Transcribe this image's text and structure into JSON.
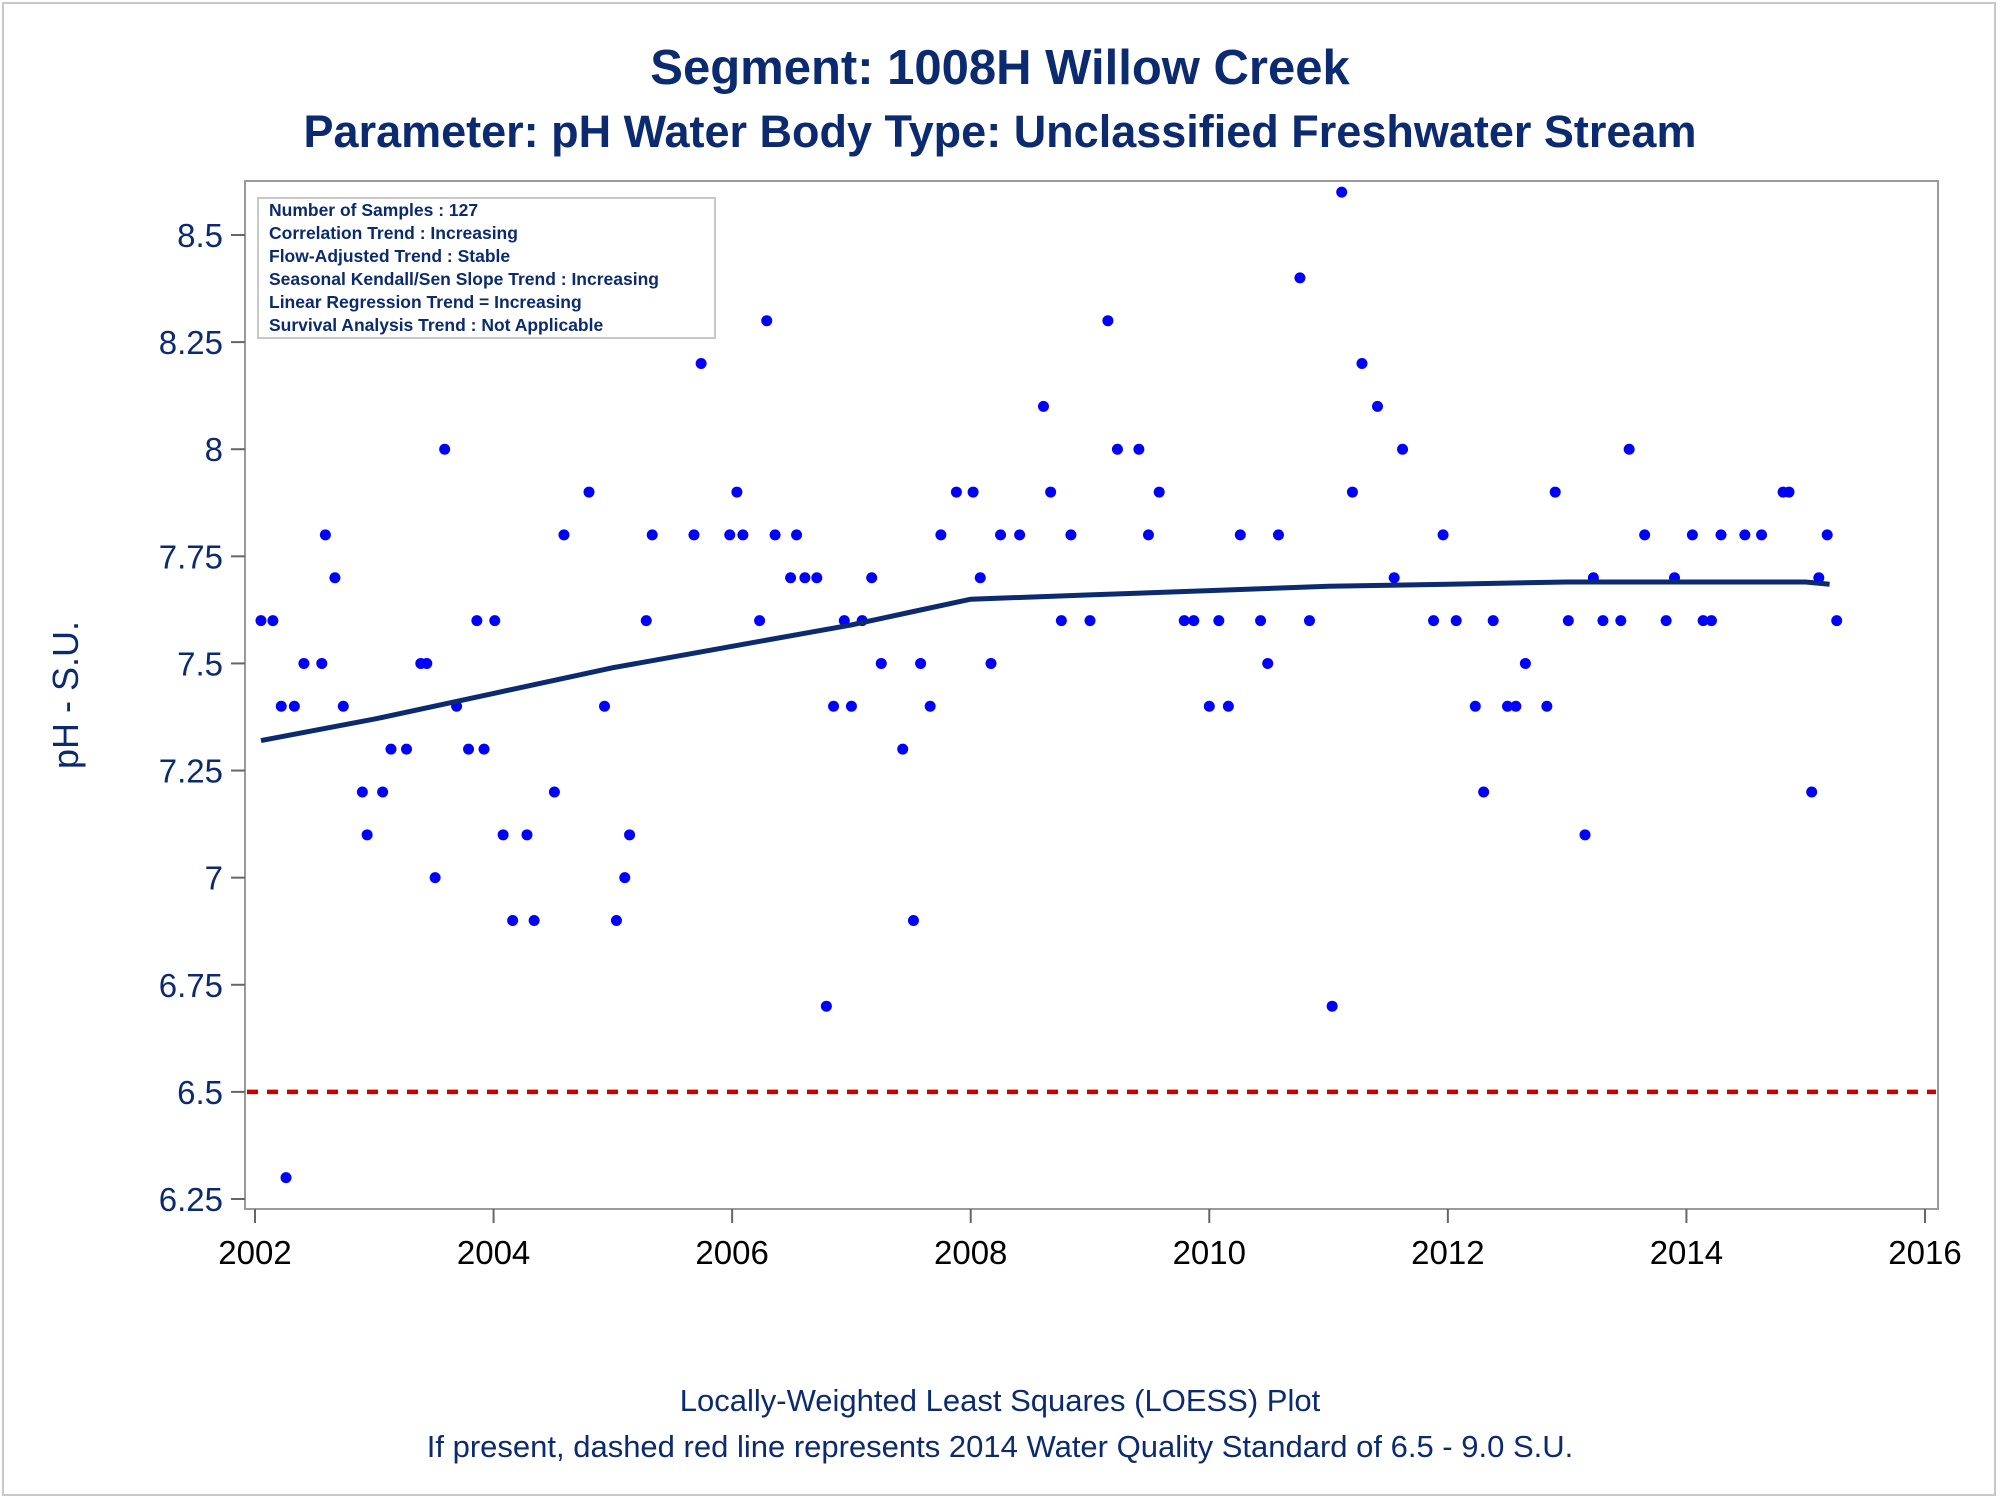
{
  "chart_data": {
    "type": "scatter",
    "title": "Segment: 1008H  Willow Creek",
    "subtitle": "Parameter: pH   Water Body Type: Unclassified Freshwater Stream",
    "xlabel": "",
    "ylabel": "pH - S.U.",
    "xlim": [
      2002,
      2016
    ],
    "ylim": [
      6.23,
      8.63
    ],
    "x_ticks": [
      2002,
      2004,
      2006,
      2008,
      2010,
      2012,
      2014,
      2016
    ],
    "y_ticks": [
      6.25,
      6.5,
      6.75,
      7,
      7.25,
      7.5,
      7.75,
      8,
      8.25,
      8.5
    ],
    "x_tick_labels": [
      "2002",
      "2004",
      "2006",
      "2008",
      "2010",
      "2012",
      "2014",
      "2016"
    ],
    "y_tick_labels": [
      "6.25",
      "6.5",
      "6.75",
      "7",
      "7.25",
      "7.5",
      "7.75",
      "8",
      "8.25",
      "8.5"
    ],
    "grid": false,
    "colors": {
      "points": "#0000ff",
      "trend": "#0b2a6f",
      "standard": "#cc0000",
      "text": "#0b2a6f"
    },
    "stats_box": [
      "Number of Samples : 127",
      "Correlation Trend : Increasing",
      "Flow-Adjusted Trend : Stable",
      "Seasonal Kendall/Sen Slope Trend : Increasing",
      "Linear Regression Trend = Increasing",
      "Survival Analysis Trend : Not Applicable"
    ],
    "footnotes": [
      "Locally-Weighted Least Squares (LOESS) Plot",
      "If present, dashed red line represents 2014 Water Quality Standard of 6.5 - 9.0 S.U."
    ],
    "standard_line": {
      "y": 6.5
    },
    "series": [
      {
        "kind": "points",
        "points": [
          [
            2002.05,
            7.6
          ],
          [
            2002.15,
            7.6
          ],
          [
            2002.22,
            7.4
          ],
          [
            2002.26,
            6.3
          ],
          [
            2002.33,
            7.4
          ],
          [
            2002.41,
            7.5
          ],
          [
            2002.56,
            7.5
          ],
          [
            2002.59,
            7.8
          ],
          [
            2002.67,
            7.7
          ],
          [
            2002.74,
            7.4
          ],
          [
            2002.9,
            7.2
          ],
          [
            2002.94,
            7.1
          ],
          [
            2003.07,
            7.2
          ],
          [
            2003.14,
            7.3
          ],
          [
            2003.27,
            7.3
          ],
          [
            2003.39,
            7.5
          ],
          [
            2003.44,
            7.5
          ],
          [
            2003.51,
            7.0
          ],
          [
            2003.59,
            8.0
          ],
          [
            2003.69,
            7.4
          ],
          [
            2003.79,
            7.3
          ],
          [
            2003.86,
            7.6
          ],
          [
            2003.92,
            7.3
          ],
          [
            2004.01,
            7.6
          ],
          [
            2004.08,
            7.1
          ],
          [
            2004.16,
            6.9
          ],
          [
            2004.28,
            7.1
          ],
          [
            2004.34,
            6.9
          ],
          [
            2004.51,
            7.2
          ],
          [
            2004.59,
            7.8
          ],
          [
            2004.8,
            7.9
          ],
          [
            2004.93,
            7.4
          ],
          [
            2005.03,
            6.9
          ],
          [
            2005.1,
            7.0
          ],
          [
            2005.14,
            7.1
          ],
          [
            2005.28,
            7.6
          ],
          [
            2005.33,
            7.8
          ],
          [
            2005.68,
            7.8
          ],
          [
            2005.74,
            8.2
          ],
          [
            2005.98,
            7.8
          ],
          [
            2006.04,
            7.9
          ],
          [
            2006.09,
            7.8
          ],
          [
            2006.23,
            7.6
          ],
          [
            2006.29,
            8.3
          ],
          [
            2006.36,
            7.8
          ],
          [
            2006.49,
            7.7
          ],
          [
            2006.54,
            7.8
          ],
          [
            2006.61,
            7.7
          ],
          [
            2006.71,
            7.7
          ],
          [
            2006.79,
            6.7
          ],
          [
            2006.85,
            7.4
          ],
          [
            2006.94,
            7.6
          ],
          [
            2007.0,
            7.4
          ],
          [
            2007.09,
            7.6
          ],
          [
            2007.17,
            7.7
          ],
          [
            2007.25,
            7.5
          ],
          [
            2007.43,
            7.3
          ],
          [
            2007.52,
            6.9
          ],
          [
            2007.58,
            7.5
          ],
          [
            2007.66,
            7.4
          ],
          [
            2007.75,
            7.8
          ],
          [
            2007.88,
            7.9
          ],
          [
            2008.02,
            7.9
          ],
          [
            2008.08,
            7.7
          ],
          [
            2008.17,
            7.5
          ],
          [
            2008.25,
            7.8
          ],
          [
            2008.41,
            7.8
          ],
          [
            2008.61,
            8.1
          ],
          [
            2008.67,
            7.9
          ],
          [
            2008.76,
            7.6
          ],
          [
            2008.84,
            7.8
          ],
          [
            2009.0,
            7.6
          ],
          [
            2009.15,
            8.3
          ],
          [
            2009.23,
            8.0
          ],
          [
            2009.41,
            8.0
          ],
          [
            2009.49,
            7.8
          ],
          [
            2009.58,
            7.9
          ],
          [
            2009.79,
            7.6
          ],
          [
            2009.87,
            7.6
          ],
          [
            2010.0,
            7.4
          ],
          [
            2010.08,
            7.6
          ],
          [
            2010.16,
            7.4
          ],
          [
            2010.26,
            7.8
          ],
          [
            2010.43,
            7.6
          ],
          [
            2010.49,
            7.5
          ],
          [
            2010.58,
            7.8
          ],
          [
            2010.76,
            8.4
          ],
          [
            2010.84,
            7.6
          ],
          [
            2011.03,
            6.7
          ],
          [
            2011.11,
            8.6
          ],
          [
            2011.2,
            7.9
          ],
          [
            2011.28,
            8.2
          ],
          [
            2011.41,
            8.1
          ],
          [
            2011.55,
            7.7
          ],
          [
            2011.62,
            8.0
          ],
          [
            2011.88,
            7.6
          ],
          [
            2011.96,
            7.8
          ],
          [
            2012.07,
            7.6
          ],
          [
            2012.23,
            7.4
          ],
          [
            2012.3,
            7.2
          ],
          [
            2012.38,
            7.6
          ],
          [
            2012.5,
            7.4
          ],
          [
            2012.57,
            7.4
          ],
          [
            2012.65,
            7.5
          ],
          [
            2012.83,
            7.4
          ],
          [
            2012.9,
            7.9
          ],
          [
            2013.01,
            7.6
          ],
          [
            2013.15,
            7.1
          ],
          [
            2013.22,
            7.7
          ],
          [
            2013.3,
            7.6
          ],
          [
            2013.45,
            7.6
          ],
          [
            2013.52,
            8.0
          ],
          [
            2013.65,
            7.8
          ],
          [
            2013.83,
            7.6
          ],
          [
            2013.9,
            7.7
          ],
          [
            2014.05,
            7.8
          ],
          [
            2014.14,
            7.6
          ],
          [
            2014.21,
            7.6
          ],
          [
            2014.29,
            7.8
          ],
          [
            2014.49,
            7.8
          ],
          [
            2014.63,
            7.8
          ],
          [
            2014.81,
            7.9
          ],
          [
            2014.86,
            7.9
          ],
          [
            2015.05,
            7.2
          ],
          [
            2015.11,
            7.7
          ],
          [
            2015.18,
            7.8
          ],
          [
            2015.26,
            7.6
          ]
        ]
      },
      {
        "kind": "trend",
        "points": [
          [
            2002.05,
            7.32
          ],
          [
            2003.0,
            7.37
          ],
          [
            2004.0,
            7.43
          ],
          [
            2005.0,
            7.49
          ],
          [
            2006.0,
            7.54
          ],
          [
            2007.0,
            7.59
          ],
          [
            2007.5,
            7.62
          ],
          [
            2008.0,
            7.65
          ],
          [
            2009.0,
            7.66
          ],
          [
            2010.0,
            7.67
          ],
          [
            2011.0,
            7.68
          ],
          [
            2012.0,
            7.685
          ],
          [
            2013.0,
            7.69
          ],
          [
            2014.0,
            7.69
          ],
          [
            2015.0,
            7.69
          ],
          [
            2015.2,
            7.685
          ]
        ]
      }
    ]
  }
}
